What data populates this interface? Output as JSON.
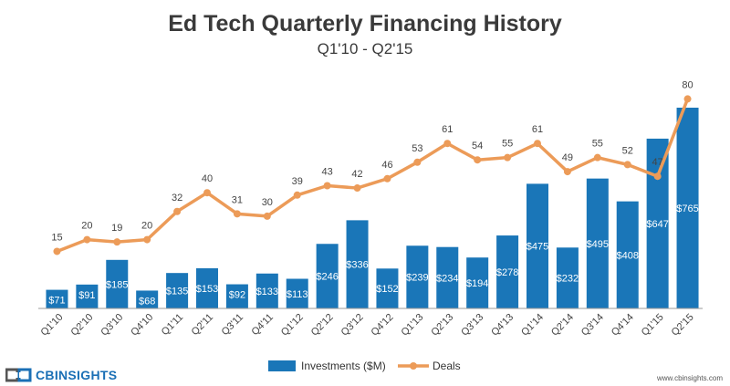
{
  "header": {
    "title": "Ed Tech Quarterly Financing History",
    "subtitle": "Q1'10 - Q2'15"
  },
  "footer": {
    "brand": "CBINSIGHTS",
    "website": "www.cbinsights.com"
  },
  "colors": {
    "bar": "#1a76b8",
    "line": "#ec9b58",
    "bar_label": "#ffffff",
    "deal_label": "#444444",
    "axis": "#999999"
  },
  "chart_data": {
    "type": "bar+line",
    "categories": [
      "Q1'10",
      "Q2'10",
      "Q3'10",
      "Q4'10",
      "Q1'11",
      "Q2'11",
      "Q3'11",
      "Q4'11",
      "Q1'12",
      "Q2'12",
      "Q3'12",
      "Q4'12",
      "Q1'13",
      "Q2'13",
      "Q3'13",
      "Q4'13",
      "Q1'14",
      "Q2'14",
      "Q3'14",
      "Q4'14",
      "Q1'15",
      "Q2'15"
    ],
    "series": [
      {
        "name": "Investments ($M)",
        "type": "bar",
        "axis": "left",
        "values": [
          71,
          91,
          185,
          68,
          135,
          153,
          92,
          133,
          113,
          246,
          336,
          152,
          239,
          234,
          194,
          278,
          475,
          232,
          495,
          408,
          647,
          765
        ],
        "labels": [
          "$71",
          "$91",
          "$185",
          "$68",
          "$135",
          "$153",
          "$92",
          "$133",
          "$113",
          "$246",
          "$336",
          "$152",
          "$239",
          "$234",
          "$194",
          "$278",
          "$475",
          "$232",
          "$495",
          "$408",
          "$647",
          "$765"
        ]
      },
      {
        "name": "Deals",
        "type": "line",
        "axis": "right",
        "values": [
          15,
          20,
          19,
          20,
          32,
          40,
          31,
          30,
          39,
          43,
          42,
          46,
          53,
          61,
          54,
          55,
          61,
          49,
          55,
          52,
          47,
          80
        ],
        "labels": [
          "15",
          "20",
          "19",
          "20",
          "32",
          "40",
          "31",
          "30",
          "39",
          "43",
          "42",
          "46",
          "53",
          "61",
          "54",
          "55",
          "61",
          "49",
          "55",
          "52",
          "47",
          "80"
        ]
      }
    ],
    "legend": {
      "position": "bottom-center",
      "entries": [
        "Investments ($M)",
        "Deals"
      ]
    },
    "grid": false
  }
}
